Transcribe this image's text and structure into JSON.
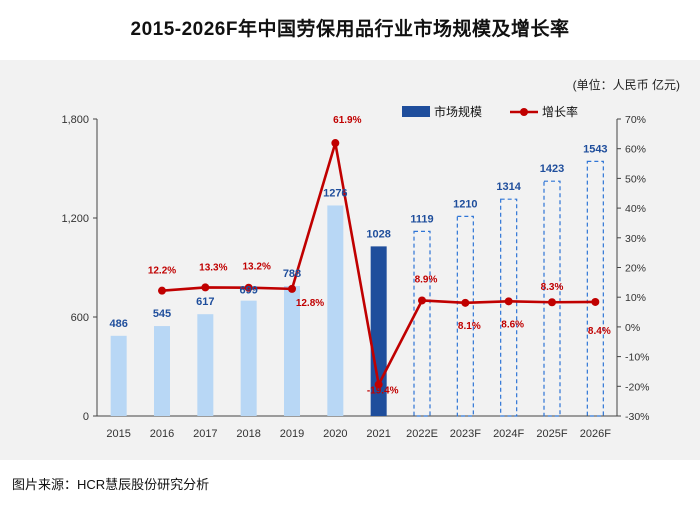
{
  "header": {
    "title": "2015-2026F年中国劳保用品行业市场规模及增长率",
    "unit": "(单位：人民币 亿元)"
  },
  "footer": {
    "source": "图片来源：HCR慧辰股份研究分析"
  },
  "chart_data": {
    "type": "bar+line",
    "categories": [
      "2015",
      "2016",
      "2017",
      "2018",
      "2019",
      "2020",
      "2021",
      "2022E",
      "2023F",
      "2024F",
      "2025F",
      "2026F"
    ],
    "series": [
      {
        "name": "市场规模",
        "type": "bar",
        "axis": "left",
        "values": [
          486,
          545,
          617,
          699,
          788,
          1276,
          1028,
          1119,
          1210,
          1314,
          1423,
          1543
        ],
        "labels": [
          "486",
          "545",
          "617",
          "699",
          "788",
          "1276",
          "1028",
          "1119",
          "1210",
          "1314",
          "1423",
          "1543"
        ],
        "styles": [
          "actual",
          "actual",
          "actual",
          "actual",
          "actual",
          "actual",
          "highlight",
          "forecast",
          "forecast",
          "forecast",
          "forecast",
          "forecast"
        ]
      },
      {
        "name": "增长率",
        "type": "line",
        "axis": "right",
        "points": [
          {
            "category": "2016",
            "value": 12.2,
            "label": "12.2%"
          },
          {
            "category": "2017",
            "value": 13.3,
            "label": "13.3%"
          },
          {
            "category": "2018",
            "value": 13.2,
            "label": "13.2%"
          },
          {
            "category": "2019",
            "value": 12.8,
            "label": "12.8%"
          },
          {
            "category": "2020",
            "value": 61.9,
            "label": "61.9%"
          },
          {
            "category": "2021",
            "value": -19.4,
            "label": "-19.4%"
          },
          {
            "category": "2022E",
            "value": 8.9,
            "label": "8.9%"
          },
          {
            "category": "2023F",
            "value": 8.1,
            "label": "8.1%"
          },
          {
            "category": "2024F",
            "value": 8.6,
            "label": "8.6%"
          },
          {
            "category": "2025F",
            "value": 8.3,
            "label": "8.3%"
          },
          {
            "category": "2026F",
            "value": 8.4,
            "label": "8.4%"
          }
        ]
      }
    ],
    "y_left": {
      "min": 0,
      "max": 1800,
      "ticks": [
        0,
        600,
        1200,
        1800
      ],
      "tick_labels": [
        "0",
        "600",
        "1,200",
        "1,800"
      ]
    },
    "y_right": {
      "min": -30,
      "max": 70,
      "ticks": [
        -30,
        -20,
        -10,
        0,
        10,
        20,
        30,
        40,
        50,
        60,
        70
      ],
      "tick_labels": [
        "-30%",
        "-20%",
        "-10%",
        "0%",
        "10%",
        "20%",
        "30%",
        "40%",
        "50%",
        "60%",
        "70%"
      ]
    },
    "legend": [
      "市场规模",
      "增长率"
    ],
    "legend_position": "top-right",
    "colors": {
      "bar_actual": "#b8d7f5",
      "bar_highlight": "#1f4e9c",
      "bar_forecast_border": "#2e75d6",
      "line": "#c00000",
      "bar_label": "#1f4e9c",
      "line_label": "#c00000"
    }
  }
}
